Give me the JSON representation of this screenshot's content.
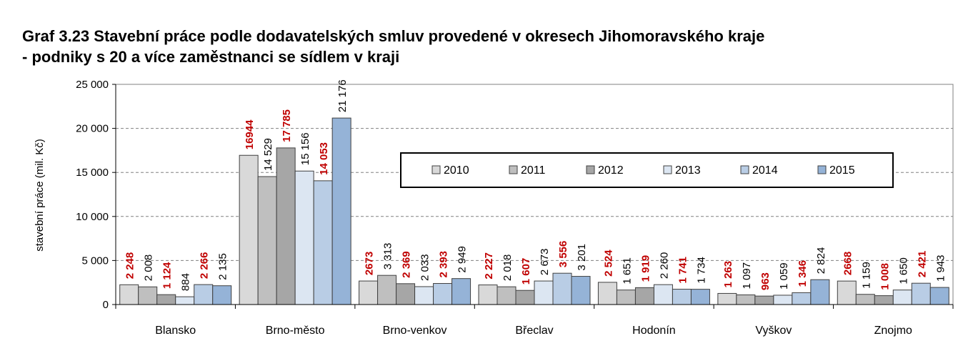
{
  "title_line1": "Graf 3.23 Stavební práce podle dodavatelských smluv provedené v okresech Jihomoravského kraje",
  "title_line2": "- podniky s 20 a více zaměstnanci se sídlem v kraji",
  "chart_data": {
    "type": "bar",
    "ylabel": "stavební práce (mil. Kč)",
    "xlabel": "",
    "ylim": [
      0,
      25000
    ],
    "yticks": [
      0,
      5000,
      10000,
      15000,
      20000,
      25000
    ],
    "ytick_labels": [
      "0",
      "5 000",
      "10 000",
      "15 000",
      "20 000",
      "25 000"
    ],
    "grid": "horizontal dashed",
    "legend_position": "inside, center-right",
    "categories": [
      "Blansko",
      "Brno-město",
      "Brno-venkov",
      "Břeclav",
      "Hodonín",
      "Vyškov",
      "Znojmo"
    ],
    "series": [
      {
        "name": "2010",
        "color": "#d9d9d9",
        "label_color": "#c00000",
        "values": [
          2248,
          16944,
          2673,
          2227,
          2524,
          1263,
          2668
        ],
        "labels": [
          "2 248",
          "16944",
          "2673",
          "2 227",
          "2 524",
          "1 263",
          "2668"
        ]
      },
      {
        "name": "2011",
        "color": "#bfbfbf",
        "label_color": "#000000",
        "values": [
          2008,
          14529,
          3313,
          2018,
          1651,
          1097,
          1159
        ],
        "labels": [
          "2 008",
          "14 529",
          "3 313",
          "2 018",
          "1 651",
          "1 097",
          "1 159"
        ]
      },
      {
        "name": "2012",
        "color": "#a6a6a6",
        "label_color": "#c00000",
        "values": [
          1124,
          17785,
          2369,
          1607,
          1919,
          963,
          1008
        ],
        "labels": [
          "1 124",
          "17 785",
          "2 369",
          "1 607",
          "1 919",
          "963",
          "1 008"
        ]
      },
      {
        "name": "2013",
        "color": "#dce6f2",
        "label_color": "#000000",
        "values": [
          884,
          15156,
          2033,
          2673,
          2260,
          1059,
          1650
        ],
        "labels": [
          "884",
          "15 156",
          "2 033",
          "2 673",
          "2 260",
          "1 059",
          "1 650"
        ]
      },
      {
        "name": "2014",
        "color": "#b9cde5",
        "label_color": "#c00000",
        "values": [
          2266,
          14053,
          2393,
          3556,
          1741,
          1346,
          2421
        ],
        "labels": [
          "2 266",
          "14 053",
          "2 393",
          "3 556",
          "1 741",
          "1 346",
          "2 421"
        ]
      },
      {
        "name": "2015",
        "color": "#95b3d7",
        "label_color": "#000000",
        "values": [
          2135,
          21176,
          2949,
          3201,
          1734,
          2824,
          1943
        ],
        "labels": [
          "2 135",
          "21 176",
          "2 949",
          "3 201",
          "1 734",
          "2 824",
          "1 943"
        ]
      }
    ]
  }
}
